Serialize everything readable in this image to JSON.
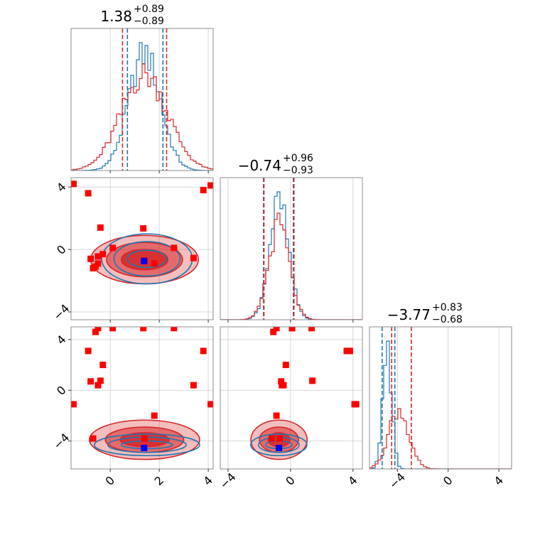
{
  "chart_data": {
    "type": "corner",
    "parameters": 3,
    "colors": {
      "series_a": "#1f77b4",
      "series_b": "#d62728",
      "truth_marker": "#0000ff",
      "sample_marker": "#ff0000"
    },
    "titles": [
      {
        "value": "1.38",
        "plus": "+0.89",
        "minus": "−0.89"
      },
      {
        "value": "−0.74",
        "plus": "+0.96",
        "minus": "−0.93"
      },
      {
        "value": "−3.77",
        "plus": "+0.83",
        "minus": "−0.68"
      }
    ],
    "ranges": [
      [
        -1.6,
        4.2
      ],
      [
        -4.5,
        4.6
      ],
      [
        -6.2,
        5.0
      ]
    ],
    "ticks": [
      {
        "values": [
          0,
          2,
          4
        ],
        "labels": [
          "0",
          "2",
          "4"
        ]
      },
      {
        "values": [
          -4,
          0,
          4
        ],
        "labels": [
          "−4",
          "0",
          "4"
        ]
      },
      {
        "values": [
          -4,
          0,
          4
        ],
        "labels": [
          "−4",
          "0",
          "4"
        ]
      }
    ],
    "quantile_lines": [
      {
        "series_a": [
          0.7,
          2.15
        ],
        "series_b": [
          0.5,
          2.3
        ]
      },
      {
        "series_a": [
          -1.73,
          0.18
        ],
        "series_b": [
          -1.7,
          0.22
        ]
      },
      {
        "series_a": [
          -5.2,
          -4.2
        ],
        "series_b": [
          -4.45,
          -2.9
        ]
      }
    ],
    "marginals": [
      {
        "mean_a": 1.4,
        "sd_a": 0.65,
        "mean_b": 1.4,
        "sd_b": 0.95
      },
      {
        "mean_a": -0.74,
        "sd_a": 0.62,
        "mean_b": -0.74,
        "sd_b": 0.66
      },
      {
        "mean_a": -4.8,
        "sd_a": 0.35,
        "mean_b": -3.9,
        "sd_b": 0.8
      }
    ],
    "contours": [
      {
        "row": 1,
        "col": 0,
        "series_a": {
          "cx": 1.5,
          "cy": -0.6,
          "rx": [
            0.8,
            1.35,
            1.85
          ],
          "ry": [
            0.55,
            1.1,
            1.6
          ]
        },
        "series_b": {
          "cx": 1.4,
          "cy": -0.65,
          "rx": [
            0.95,
            1.55,
            2.2
          ],
          "ry": [
            0.65,
            1.1,
            1.55
          ]
        }
      },
      {
        "row": 2,
        "col": 0,
        "series_a": {
          "cx": 1.5,
          "cy": -4.3,
          "rx": [
            1.05,
            1.6,
            2.15
          ],
          "ry": [
            0.3,
            0.6,
            0.85
          ]
        },
        "series_b": {
          "cx": 1.4,
          "cy": -3.9,
          "rx": [
            1.0,
            1.6,
            2.25
          ],
          "ry": [
            0.55,
            1.0,
            1.55
          ]
        }
      },
      {
        "row": 2,
        "col": 1,
        "series_a": {
          "cx": -0.75,
          "cy": -4.3,
          "rx": [
            0.85,
            1.3,
            1.8
          ],
          "ry": [
            0.3,
            0.6,
            0.85
          ]
        },
        "series_b": {
          "cx": -0.74,
          "cy": -3.9,
          "rx": [
            0.7,
            1.25,
            1.8
          ],
          "ry": [
            0.55,
            1.0,
            1.55
          ]
        }
      }
    ],
    "truth_point": [
      1.38,
      -0.74,
      -4.55
    ],
    "sample_points": [
      [
        -1.5,
        4.2,
        -1.1
      ],
      [
        -0.9,
        3.6,
        3.1
      ],
      [
        -0.4,
        1.4,
        0.75
      ],
      [
        -0.6,
        -1.1,
        4.6
      ],
      [
        -0.5,
        -0.9,
        4.9
      ],
      [
        2.6,
        0.1,
        4.9
      ],
      [
        3.4,
        -0.55,
        0.4
      ],
      [
        1.8,
        -0.9,
        -2.0
      ],
      [
        1.4,
        -0.7,
        -3.8
      ],
      [
        -0.7,
        -1.2,
        -3.8
      ],
      [
        -0.8,
        -0.6,
        0.7
      ],
      [
        -0.3,
        -0.3,
        2.0
      ],
      [
        -0.5,
        -0.45,
        0.4
      ],
      [
        3.8,
        3.8,
        3.1
      ],
      [
        4.1,
        4.1,
        -1.1
      ],
      [
        0.1,
        0.1,
        4.9
      ],
      [
        1.35,
        1.35,
        4.9
      ]
    ]
  }
}
